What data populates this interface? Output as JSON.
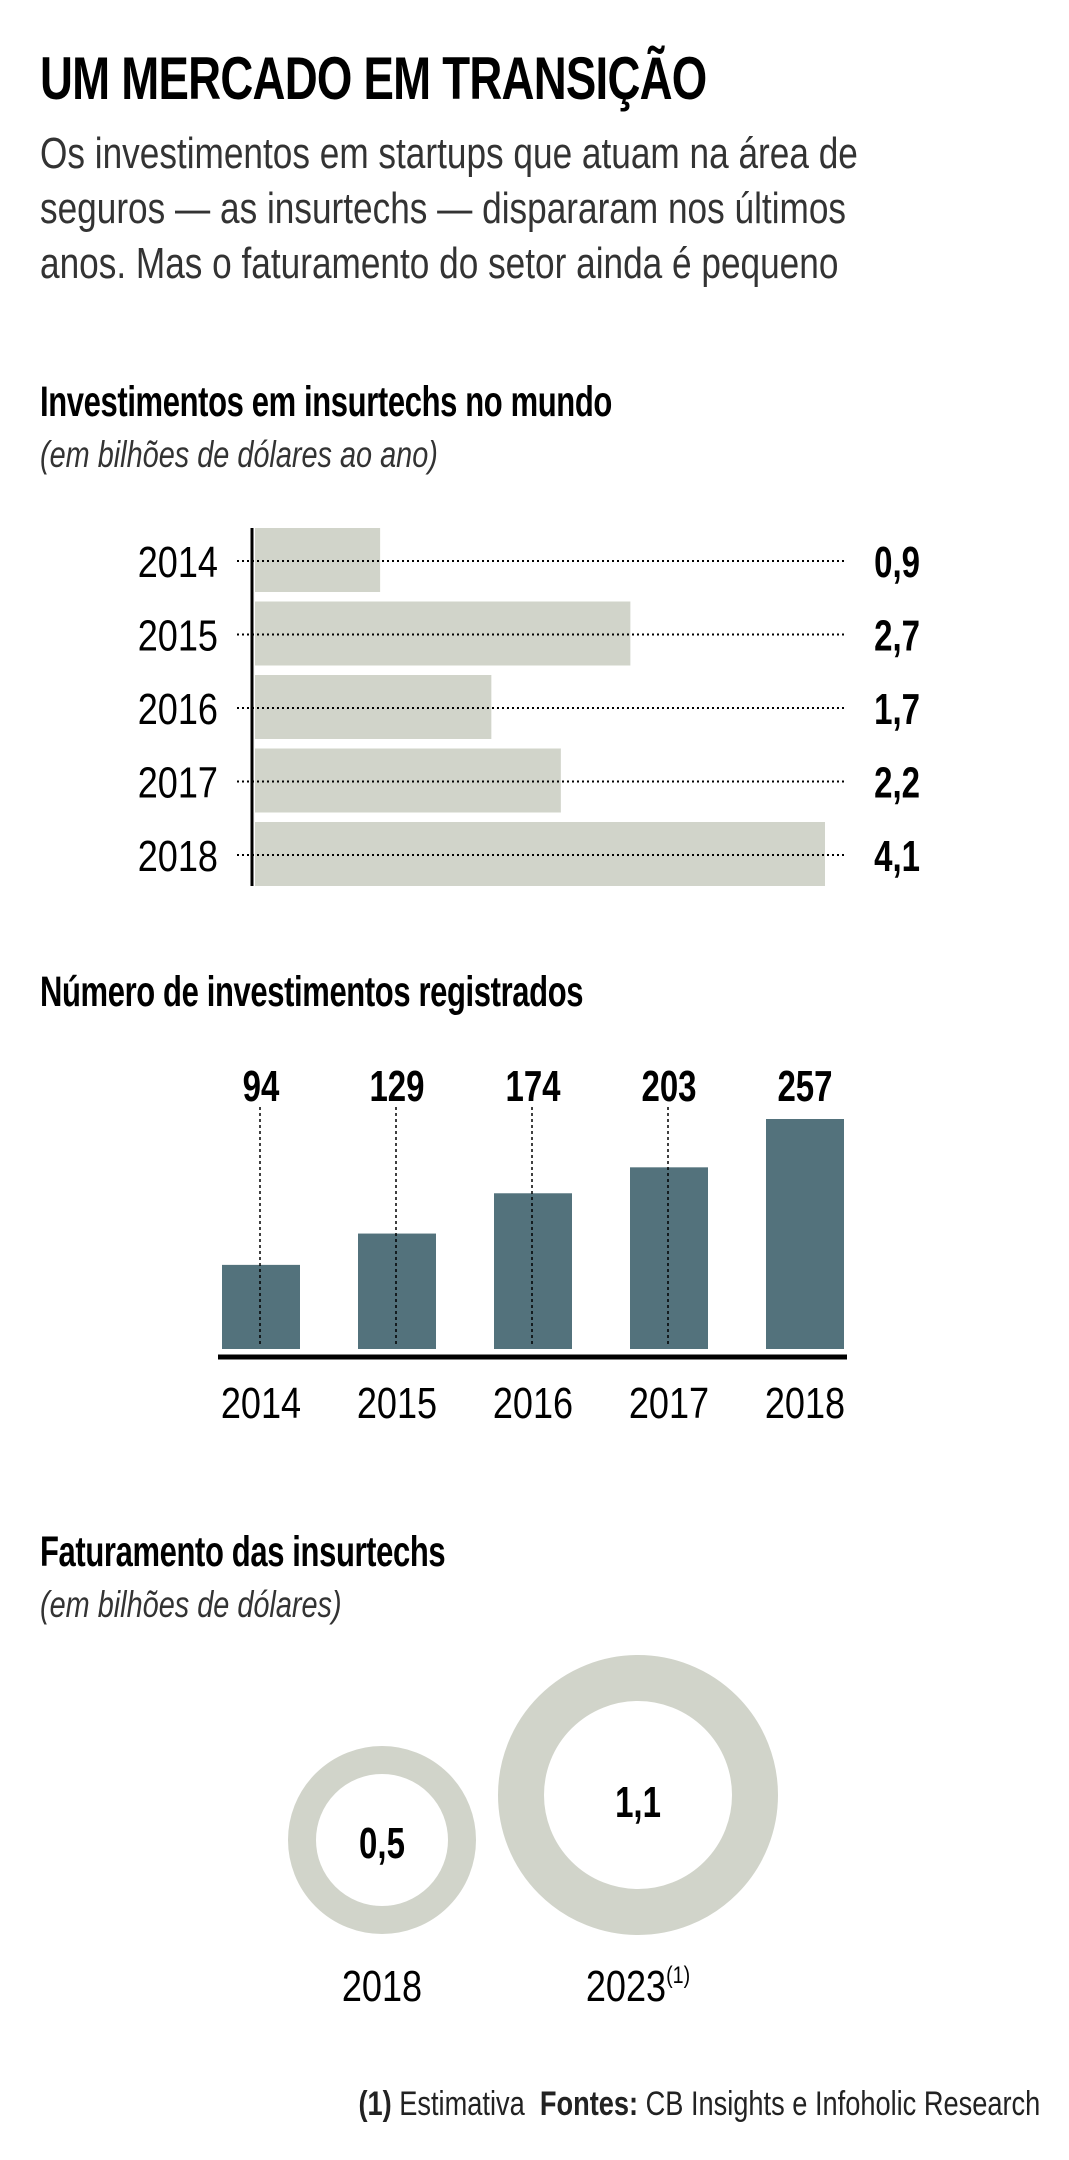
{
  "header": {
    "title": "UM MERCADO EM TRANSIÇÃO",
    "lede_lines": [
      "Os investimentos em startups que atuam na área de",
      "seguros — as insurtechs — dispararam nos últimos",
      "anos. Mas o faturamento do setor ainda é pequeno"
    ]
  },
  "sections": {
    "investments": {
      "title": "Investimentos em insurtechs no mundo",
      "subtitle": "(em bilhões de dólares ao ano)"
    },
    "deals": {
      "title": "Número de investimentos registrados"
    },
    "revenue": {
      "title": "Faturamento das insurtechs",
      "subtitle": "(em bilhões de dólares)"
    }
  },
  "footnote": {
    "note_marker": "(1)",
    "note_text": "Estimativa",
    "sources_label": "Fontes:",
    "sources_text": "CB Insights e Infoholic Research"
  },
  "colors": {
    "light_bar": "#d1d4ca",
    "dark_bar": "#53727c",
    "text": "#000000",
    "text_soft": "#333333"
  },
  "chart_data": [
    {
      "type": "bar",
      "orientation": "horizontal",
      "title": "Investimentos em insurtechs no mundo",
      "subtitle": "(em bilhões de dólares ao ano)",
      "categories": [
        "2014",
        "2015",
        "2016",
        "2017",
        "2018"
      ],
      "values": [
        0.9,
        2.7,
        1.7,
        2.2,
        4.1
      ],
      "value_labels": [
        "0,9",
        "2,7",
        "1,7",
        "2,2",
        "4,1"
      ],
      "xlim": [
        0,
        4.1
      ],
      "grid": false,
      "leader_lines": "dotted"
    },
    {
      "type": "bar",
      "orientation": "vertical",
      "title": "Número de investimentos registrados",
      "categories": [
        "2014",
        "2015",
        "2016",
        "2017",
        "2018"
      ],
      "values": [
        94,
        129,
        174,
        203,
        257
      ],
      "value_labels": [
        "94",
        "129",
        "174",
        "203",
        "257"
      ],
      "ylim": [
        0,
        257
      ],
      "grid": false,
      "leader_lines": "dotted"
    },
    {
      "type": "bubble",
      "title": "Faturamento das insurtechs",
      "subtitle": "(em bilhões de dólares)",
      "categories": [
        "2018",
        "2023"
      ],
      "category_notes": [
        "",
        "(1)"
      ],
      "values": [
        0.5,
        1.1
      ],
      "value_labels": [
        "0,5",
        "1,1"
      ]
    }
  ]
}
